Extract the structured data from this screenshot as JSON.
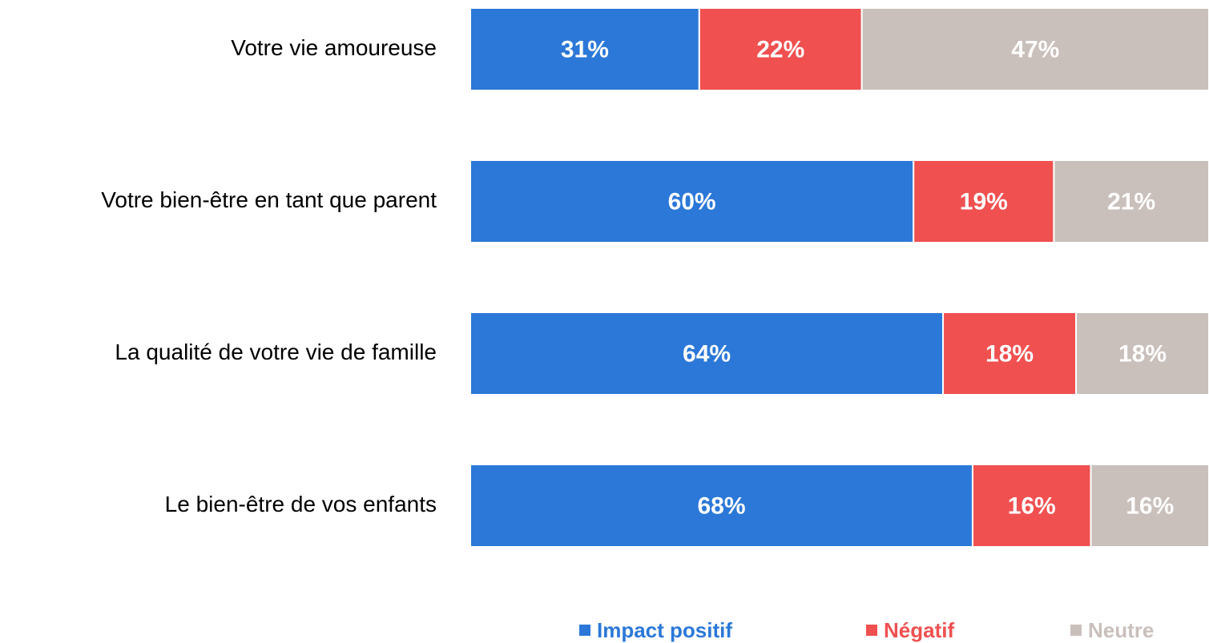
{
  "chart_data": {
    "type": "stacked_bar_horizontal",
    "categories": [
      "Votre vie amoureuse",
      "Votre bien-être en tant que parent",
      "La qualité de votre vie de famille",
      "Le bien-être de vos enfants"
    ],
    "xlim": [
      0,
      100
    ],
    "series": [
      {
        "name": "Impact positif",
        "color": "#2b78d8",
        "values": [
          31,
          60,
          64,
          68
        ],
        "value_labels": [
          "31%",
          "60%",
          "64%",
          "68%"
        ]
      },
      {
        "name": "Négatif",
        "color": "#f05050",
        "values": [
          22,
          19,
          18,
          16
        ],
        "value_labels": [
          "22%",
          "19%",
          "18%",
          "16%"
        ]
      },
      {
        "name": "Neutre",
        "color": "#c9bfbb",
        "values": [
          47,
          21,
          18,
          16
        ],
        "value_labels": [
          "47%",
          "21%",
          "18%",
          "16%"
        ]
      }
    ],
    "legend": "bottom"
  }
}
